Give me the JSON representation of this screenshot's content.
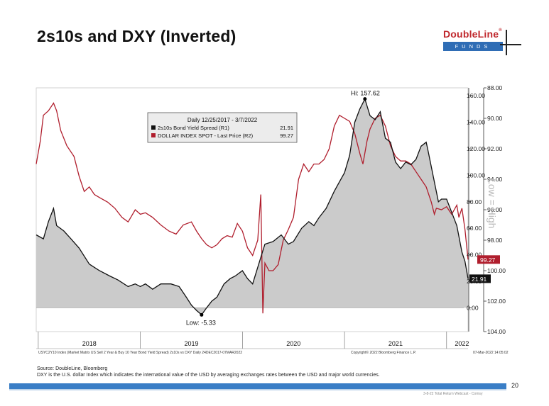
{
  "slide": {
    "title": "2s10s and DXY (Inverted)",
    "logo_name": "DoubleLine",
    "logo_reg": "®",
    "logo_sub": "FUNDS",
    "source": "Source:  DoubleLine, Bloomberg",
    "note": "DXY is the U.S. dollar Index which indicates the international value of the USD by averaging exchanges rates between the USD and major world currencies.",
    "page_number": "20",
    "footer_small": "3-8-22 Total Return Webcast - Comsy"
  },
  "colors": {
    "series1": "#111111",
    "series2": "#b01e2d",
    "fill": "#cbcbcb",
    "accent": "#2f6db5"
  },
  "chart_data": {
    "type": "line",
    "legend": {
      "title": "Daily 12/25/2017 - 3/7/2022",
      "entries": [
        {
          "label": "2s10s Bond Yield Spread (R1)",
          "value": "21.91"
        },
        {
          "label": "DOLLAR INDEX SPOT - Last Price (R2)",
          "value": "99.27"
        }
      ],
      "placement": "top-left"
    },
    "x_labels": [
      "2018",
      "2019",
      "2020",
      "2021",
      "2022"
    ],
    "x_label_dates": [
      2018.5,
      2019.5,
      2020.5,
      2021.5,
      2022.15
    ],
    "x_range": [
      2017.98,
      2022.21
    ],
    "axis_r1": {
      "ticks": [
        "0.00",
        "20.00",
        "40.00",
        "60.00",
        "80.00",
        "100.00",
        "120.00",
        "140.00",
        "160.00"
      ],
      "min": -18,
      "max": 166
    },
    "axis_r2": {
      "ticks": [
        "88.00",
        "90.00",
        "92.00",
        "94.00",
        "96.00",
        "98.00",
        "100.00",
        "102.00",
        "104.00"
      ],
      "min": 88,
      "max": 104
    },
    "axis_title": "Low = High",
    "annotations": {
      "high": "Hi: 157.62",
      "low": "Low: -5.33"
    },
    "last_value_tags": {
      "spread": "21.91",
      "dxy": "99.27"
    },
    "series": [
      {
        "name": "2s10s Bond Yield Spread (R1)",
        "axis": "R1",
        "points": [
          [
            2017.98,
            55
          ],
          [
            2018.05,
            52
          ],
          [
            2018.1,
            65
          ],
          [
            2018.15,
            75
          ],
          [
            2018.18,
            62
          ],
          [
            2018.25,
            58
          ],
          [
            2018.32,
            52
          ],
          [
            2018.4,
            45
          ],
          [
            2018.5,
            33
          ],
          [
            2018.6,
            28
          ],
          [
            2018.7,
            24
          ],
          [
            2018.78,
            21
          ],
          [
            2018.88,
            16
          ],
          [
            2018.95,
            18
          ],
          [
            2019.0,
            16
          ],
          [
            2019.05,
            18
          ],
          [
            2019.12,
            14
          ],
          [
            2019.2,
            18
          ],
          [
            2019.3,
            18
          ],
          [
            2019.38,
            16
          ],
          [
            2019.45,
            8
          ],
          [
            2019.5,
            2
          ],
          [
            2019.55,
            -2
          ],
          [
            2019.6,
            -5.33
          ],
          [
            2019.65,
            0
          ],
          [
            2019.7,
            5
          ],
          [
            2019.75,
            8
          ],
          [
            2019.82,
            18
          ],
          [
            2019.88,
            22
          ],
          [
            2019.93,
            24
          ],
          [
            2020.0,
            28
          ],
          [
            2020.05,
            22
          ],
          [
            2020.1,
            18
          ],
          [
            2020.18,
            38
          ],
          [
            2020.22,
            48
          ],
          [
            2020.3,
            50
          ],
          [
            2020.38,
            55
          ],
          [
            2020.45,
            48
          ],
          [
            2020.5,
            50
          ],
          [
            2020.58,
            60
          ],
          [
            2020.65,
            65
          ],
          [
            2020.7,
            62
          ],
          [
            2020.75,
            68
          ],
          [
            2020.82,
            75
          ],
          [
            2020.9,
            88
          ],
          [
            2020.95,
            95
          ],
          [
            2021.0,
            102
          ],
          [
            2021.05,
            115
          ],
          [
            2021.1,
            140
          ],
          [
            2021.15,
            150
          ],
          [
            2021.2,
            157.62
          ],
          [
            2021.25,
            145
          ],
          [
            2021.3,
            142
          ],
          [
            2021.35,
            148
          ],
          [
            2021.4,
            128
          ],
          [
            2021.45,
            125
          ],
          [
            2021.5,
            110
          ],
          [
            2021.55,
            105
          ],
          [
            2021.6,
            110
          ],
          [
            2021.65,
            108
          ],
          [
            2021.7,
            112
          ],
          [
            2021.75,
            122
          ],
          [
            2021.8,
            125
          ],
          [
            2021.82,
            118
          ],
          [
            2021.88,
            95
          ],
          [
            2021.92,
            80
          ],
          [
            2021.95,
            82
          ],
          [
            2022.0,
            82
          ],
          [
            2022.05,
            72
          ],
          [
            2022.1,
            62
          ],
          [
            2022.15,
            42
          ],
          [
            2022.18,
            35
          ],
          [
            2022.21,
            21.91
          ]
        ]
      },
      {
        "name": "DOLLAR INDEX SPOT - Last Price (R2)",
        "axis": "R2",
        "points": [
          [
            2017.98,
            93.0
          ],
          [
            2018.02,
            91.5
          ],
          [
            2018.05,
            89.8
          ],
          [
            2018.1,
            89.5
          ],
          [
            2018.15,
            89.0
          ],
          [
            2018.18,
            89.5
          ],
          [
            2018.22,
            90.8
          ],
          [
            2018.28,
            91.8
          ],
          [
            2018.35,
            92.5
          ],
          [
            2018.4,
            93.8
          ],
          [
            2018.45,
            94.8
          ],
          [
            2018.5,
            94.5
          ],
          [
            2018.55,
            95.0
          ],
          [
            2018.6,
            95.2
          ],
          [
            2018.68,
            95.5
          ],
          [
            2018.75,
            95.9
          ],
          [
            2018.82,
            96.5
          ],
          [
            2018.88,
            96.8
          ],
          [
            2018.95,
            96.0
          ],
          [
            2019.0,
            96.3
          ],
          [
            2019.05,
            96.2
          ],
          [
            2019.12,
            96.5
          ],
          [
            2019.2,
            97.0
          ],
          [
            2019.28,
            97.4
          ],
          [
            2019.35,
            97.6
          ],
          [
            2019.42,
            97.0
          ],
          [
            2019.5,
            96.8
          ],
          [
            2019.55,
            97.4
          ],
          [
            2019.6,
            97.9
          ],
          [
            2019.65,
            98.3
          ],
          [
            2019.7,
            98.5
          ],
          [
            2019.75,
            98.3
          ],
          [
            2019.8,
            97.9
          ],
          [
            2019.85,
            97.7
          ],
          [
            2019.9,
            97.8
          ],
          [
            2019.95,
            96.9
          ],
          [
            2020.0,
            97.4
          ],
          [
            2020.05,
            98.5
          ],
          [
            2020.1,
            99.0
          ],
          [
            2020.15,
            98.0
          ],
          [
            2020.18,
            95.0
          ],
          [
            2020.2,
            102.8
          ],
          [
            2020.22,
            99.5
          ],
          [
            2020.26,
            100.0
          ],
          [
            2020.3,
            100.0
          ],
          [
            2020.35,
            99.6
          ],
          [
            2020.4,
            98.0
          ],
          [
            2020.45,
            97.3
          ],
          [
            2020.5,
            96.5
          ],
          [
            2020.55,
            94.0
          ],
          [
            2020.6,
            93.0
          ],
          [
            2020.65,
            93.5
          ],
          [
            2020.7,
            93.0
          ],
          [
            2020.75,
            93.0
          ],
          [
            2020.8,
            92.7
          ],
          [
            2020.85,
            92.0
          ],
          [
            2020.9,
            90.5
          ],
          [
            2020.95,
            89.8
          ],
          [
            2021.0,
            90.0
          ],
          [
            2021.05,
            90.2
          ],
          [
            2021.1,
            91.0
          ],
          [
            2021.15,
            92.3
          ],
          [
            2021.18,
            93.0
          ],
          [
            2021.22,
            91.5
          ],
          [
            2021.25,
            90.7
          ],
          [
            2021.3,
            90.0
          ],
          [
            2021.35,
            89.8
          ],
          [
            2021.4,
            90.5
          ],
          [
            2021.45,
            91.8
          ],
          [
            2021.5,
            92.5
          ],
          [
            2021.55,
            92.8
          ],
          [
            2021.6,
            92.8
          ],
          [
            2021.65,
            93.0
          ],
          [
            2021.7,
            93.5
          ],
          [
            2021.75,
            94.0
          ],
          [
            2021.8,
            94.5
          ],
          [
            2021.85,
            95.5
          ],
          [
            2021.88,
            96.3
          ],
          [
            2021.9,
            95.9
          ],
          [
            2021.95,
            96.0
          ],
          [
            2022.0,
            95.8
          ],
          [
            2022.05,
            96.3
          ],
          [
            2022.1,
            95.7
          ],
          [
            2022.12,
            96.5
          ],
          [
            2022.15,
            95.9
          ],
          [
            2022.18,
            97.3
          ],
          [
            2022.21,
            99.27
          ]
        ]
      }
    ],
    "bottom_text": {
      "left": "USYC2Y10 Index (Market Matrix US Sell 2 Year & Buy 10 Year Bond Yield Spread) 2s10s vs DXY  Daily 24DEC2017-07MAR2022",
      "center": "Copyright© 2022 Bloomberg Finance L.P.",
      "right": "07-Mar-2022 14:05:02"
    }
  }
}
